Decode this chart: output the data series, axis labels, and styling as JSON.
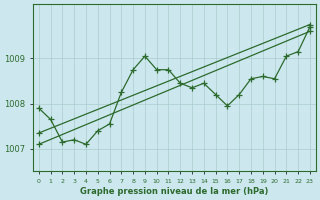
{
  "xlabel": "Graphe pression niveau de la mer (hPa)",
  "bg_color": "#cce8ee",
  "line_color": "#2d6a2d",
  "grid_color": "#aacccc",
  "text_color": "#2d6a2d",
  "xlim": [
    -0.5,
    23.5
  ],
  "ylim": [
    1006.5,
    1010.2
  ],
  "yticks": [
    1007,
    1008,
    1009
  ],
  "xticks": [
    0,
    1,
    2,
    3,
    4,
    5,
    6,
    7,
    8,
    9,
    10,
    11,
    12,
    13,
    14,
    15,
    16,
    17,
    18,
    19,
    20,
    21,
    22,
    23
  ],
  "series": [
    {
      "x": [
        0,
        1,
        2,
        3,
        4,
        5,
        6,
        7,
        8,
        9,
        10,
        11,
        12,
        13,
        14,
        15,
        16,
        17,
        18,
        19,
        20,
        21,
        22,
        23
      ],
      "y": [
        1007.9,
        1007.65,
        1007.15,
        1007.2,
        1007.1,
        1007.4,
        1007.55,
        1008.25,
        1008.75,
        1009.05,
        1008.75,
        1008.75,
        1008.45,
        1008.35,
        1008.45,
        1008.2,
        1007.95,
        1008.2,
        1008.55,
        1008.6,
        1008.55,
        1009.05,
        1009.15,
        1009.7
      ]
    },
    {
      "x": [
        0,
        23
      ],
      "y": [
        1007.35,
        1009.75
      ]
    },
    {
      "x": [
        0,
        23
      ],
      "y": [
        1007.1,
        1009.6
      ]
    }
  ]
}
